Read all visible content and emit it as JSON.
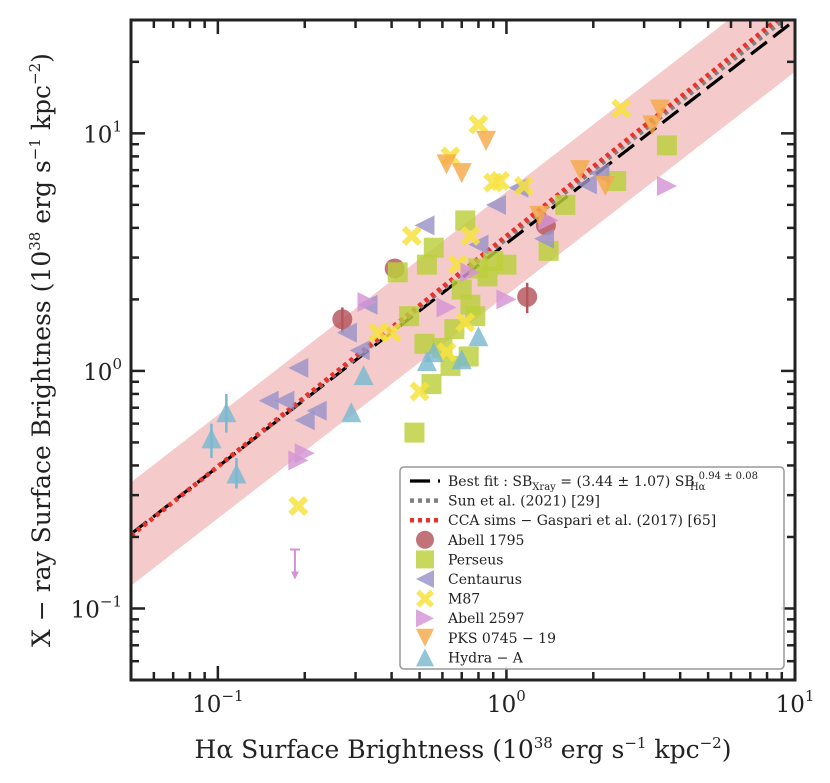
{
  "chart_data": {
    "type": "scatter",
    "xscale": "log",
    "yscale": "log",
    "xlim": [
      0.05,
      10
    ],
    "ylim": [
      0.05,
      30
    ],
    "xlabel": "Hα Surface Brightness (10^38 erg s^-1 kpc^-2)",
    "ylabel": "X − ray Surface Brightness (10^38 erg s^-1 kpc^-2)",
    "xlabel_parts": {
      "main": "Hα Surface Brightness (10",
      "exp1": "38",
      "mid": " erg s",
      "exp2": "−1",
      "mid2": " kpc",
      "exp3": "−2",
      "end": ")"
    },
    "ylabel_parts": {
      "main": "X − ray Surface Brightness (10",
      "exp1": "38",
      "mid": " erg s",
      "exp2": "−1",
      "mid2": " kpc",
      "exp3": "−2",
      "end": ")"
    },
    "x_ticks": [
      {
        "value": 0.1,
        "base": "10",
        "exp": "−1"
      },
      {
        "value": 1,
        "base": "10",
        "exp": "0"
      },
      {
        "value": 10,
        "base": "10",
        "exp": "1"
      }
    ],
    "y_ticks": [
      {
        "value": 0.1,
        "base": "10",
        "exp": "−1"
      },
      {
        "value": 1,
        "base": "10",
        "exp": "0"
      },
      {
        "value": 10,
        "base": "10",
        "exp": "1"
      }
    ],
    "band": {
      "color": "#f2b8b8",
      "factor": 1.65,
      "norm": 3.44,
      "slope": 0.94
    },
    "lines": [
      {
        "name": "Best fit",
        "style": "dashed",
        "color": "#000000",
        "norm": 3.44,
        "slope": 0.94
      },
      {
        "name": "Sun et al. (2021) [29]",
        "style": "dotted",
        "color": "#808080",
        "norm": 3.6,
        "slope": 0.96
      },
      {
        "name": "CCA sims − Gaspari et al. (2017) [65]",
        "style": "dotted",
        "color": "#e8322a",
        "norm": 3.7,
        "slope": 0.97
      }
    ],
    "series": [
      {
        "name": "Abell 1795",
        "marker": "circle",
        "color": "#b5545c",
        "points": [
          [
            0.27,
            1.65
          ],
          [
            0.41,
            2.7
          ],
          [
            1.18,
            2.05
          ],
          [
            1.37,
            4.1
          ]
        ],
        "yerr": [
          [
            0.27,
            1.45,
            1.85
          ],
          [
            1.18,
            1.75,
            2.35
          ]
        ]
      },
      {
        "name": "Perseus",
        "marker": "square",
        "color": "#bccf3a",
        "points": [
          [
            0.42,
            2.6
          ],
          [
            0.46,
            1.7
          ],
          [
            0.52,
            1.3
          ],
          [
            0.55,
            0.88
          ],
          [
            0.56,
            3.3
          ],
          [
            0.64,
            1.05
          ],
          [
            0.66,
            1.5
          ],
          [
            0.7,
            2.2
          ],
          [
            0.72,
            4.3
          ],
          [
            0.74,
            1.15
          ],
          [
            0.75,
            1.9
          ],
          [
            0.78,
            1.7
          ],
          [
            0.8,
            2.7
          ],
          [
            0.86,
            2.5
          ],
          [
            0.9,
            2.9
          ],
          [
            1.0,
            2.8
          ],
          [
            1.4,
            3.2
          ],
          [
            1.6,
            5.0
          ],
          [
            2.4,
            6.3
          ],
          [
            3.6,
            8.9
          ],
          [
            0.48,
            0.55
          ],
          [
            0.6,
            1.25
          ],
          [
            0.53,
            2.8
          ]
        ]
      },
      {
        "name": "Centaurus",
        "marker": "tri-left",
        "color": "#9a93c8",
        "points": [
          [
            0.19,
            1.03
          ],
          [
            0.15,
            0.75
          ],
          [
            0.17,
            0.75
          ],
          [
            0.2,
            0.62
          ],
          [
            0.28,
            1.45
          ],
          [
            0.31,
            1.22
          ],
          [
            0.33,
            1.9
          ],
          [
            0.52,
            4.1
          ],
          [
            0.8,
            3.4
          ],
          [
            0.92,
            5.0
          ],
          [
            1.1,
            5.9
          ],
          [
            1.35,
            3.6
          ],
          [
            1.9,
            6.1
          ],
          [
            2.1,
            6.8
          ],
          [
            0.22,
            0.68
          ]
        ]
      },
      {
        "name": "M87",
        "marker": "cross",
        "color": "#f7e33f",
        "points": [
          [
            0.19,
            0.27
          ],
          [
            0.36,
            1.45
          ],
          [
            0.4,
            1.45
          ],
          [
            0.47,
            3.7
          ],
          [
            0.5,
            0.82
          ],
          [
            0.62,
            1.2
          ],
          [
            0.64,
            8.0
          ],
          [
            0.72,
            1.6
          ],
          [
            0.75,
            3.7
          ],
          [
            0.8,
            10.9
          ],
          [
            0.9,
            6.2
          ],
          [
            0.95,
            6.3
          ],
          [
            1.15,
            6.0
          ],
          [
            2.5,
            12.7
          ],
          [
            0.68,
            2.8
          ]
        ]
      },
      {
        "name": "Abell 2597",
        "marker": "tri-right",
        "color": "#d494d4",
        "points": [
          [
            0.19,
            0.42
          ],
          [
            0.2,
            0.45
          ],
          [
            0.33,
            1.95
          ],
          [
            0.62,
            1.85
          ],
          [
            0.75,
            2.6
          ],
          [
            1.0,
            2.0
          ],
          [
            1.4,
            4.3
          ],
          [
            3.6,
            6.0
          ]
        ],
        "upper": [
          [
            0.185,
            0.135
          ]
        ]
      },
      {
        "name": "PKS 0745 − 19",
        "marker": "tri-down",
        "color": "#f5a849",
        "points": [
          [
            0.62,
            7.4
          ],
          [
            0.7,
            6.8
          ],
          [
            0.85,
            9.3
          ],
          [
            1.8,
            7.0
          ],
          [
            2.2,
            6.0
          ],
          [
            3.2,
            10.8
          ],
          [
            3.4,
            12.6
          ],
          [
            1.3,
            4.5
          ]
        ]
      },
      {
        "name": "Hydra − A",
        "marker": "tri-up",
        "color": "#7ab8d0",
        "points": [
          [
            0.095,
            0.52
          ],
          [
            0.107,
            0.67
          ],
          [
            0.116,
            0.37
          ],
          [
            0.29,
            0.67
          ],
          [
            0.32,
            0.96
          ],
          [
            0.53,
            1.1
          ],
          [
            0.56,
            1.2
          ],
          [
            0.7,
            1.12
          ],
          [
            0.8,
            1.4
          ]
        ],
        "yerr": [
          [
            0.107,
            0.55,
            0.8
          ],
          [
            0.095,
            0.43,
            0.6
          ],
          [
            0.116,
            0.32,
            0.43
          ]
        ]
      }
    ],
    "legend": {
      "placement": "lower-right",
      "entries": [
        {
          "label": "Best fit : SB",
          "sub1": "Xray",
          "mid": " = (3.44 ± 1.07) SB",
          "sup": "0.94 ± 0.08",
          "sub2": "Hα"
        },
        {
          "label": "Sun et al. (2021) [29]"
        },
        {
          "label": "CCA sims − Gaspari et al. (2017) [65]"
        },
        {
          "label": "Abell 1795"
        },
        {
          "label": "Perseus"
        },
        {
          "label": "Centaurus"
        },
        {
          "label": "M87"
        },
        {
          "label": "Abell 2597"
        },
        {
          "label": "PKS 0745 − 19"
        },
        {
          "label": "Hydra − A"
        }
      ]
    }
  }
}
